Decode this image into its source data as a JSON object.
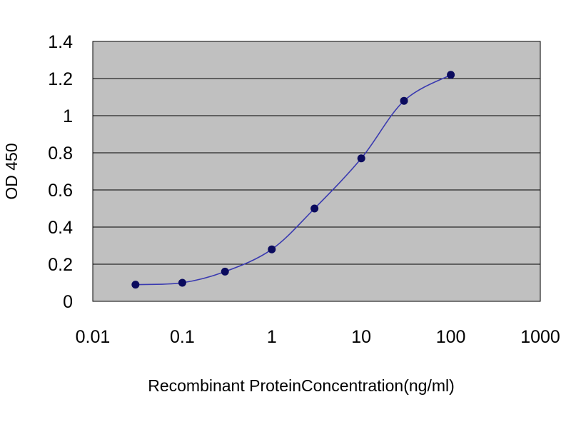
{
  "chart_data": {
    "type": "line",
    "title": "",
    "xlabel": "Recombinant ProteinConcentration(ng/ml)",
    "ylabel": "OD 450",
    "x_scale": "log",
    "xlim": [
      0.01,
      1000
    ],
    "ylim": [
      0,
      1.4
    ],
    "x_ticks": [
      "0.01",
      "0.1",
      "1",
      "10",
      "100",
      "1000"
    ],
    "y_ticks": [
      "0",
      "0.2",
      "0.4",
      "0.6",
      "0.8",
      "1",
      "1.2",
      "1.4"
    ],
    "grid": "horizontal",
    "legend": "none",
    "series": [
      {
        "x": [
          0.03,
          0.1,
          0.3,
          1,
          3,
          10,
          30,
          100
        ],
        "y": [
          0.09,
          0.1,
          0.16,
          0.28,
          0.5,
          0.77,
          1.08,
          1.22
        ]
      }
    ],
    "colors": {
      "plot_background": "#c0c0c0",
      "gridline": "#000000",
      "series_line": "#3a3ab0",
      "marker": "#0b0b5e"
    }
  }
}
